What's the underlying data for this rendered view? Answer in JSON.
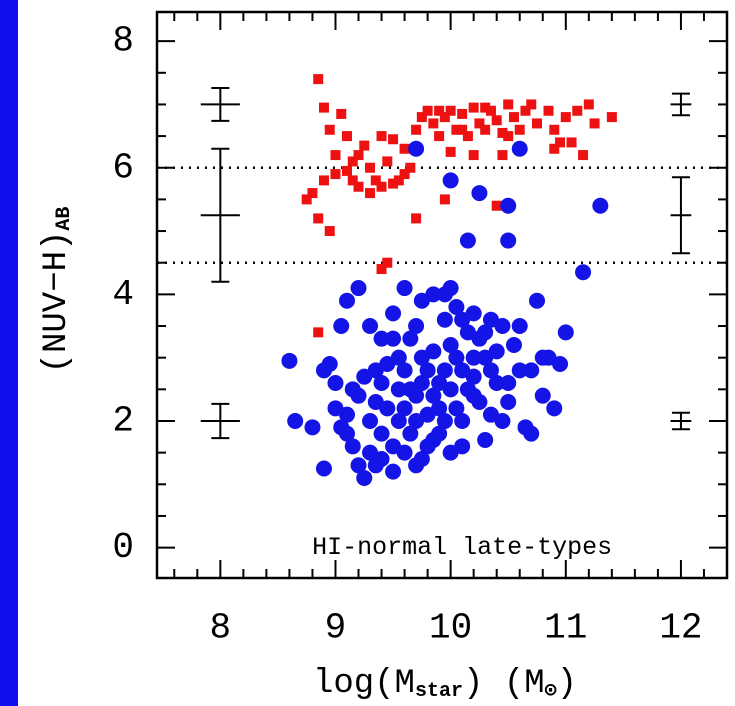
{
  "chart_data": {
    "type": "scatter",
    "background": "#1010ee",
    "ylabel": "(NUV−H)",
    "ylabel_sub": "AB",
    "xlabel_parts": [
      "log(M",
      "star",
      ") (M",
      "⊙",
      ")"
    ],
    "annotation": {
      "text": "HI-normal late-types",
      "x": 10.1,
      "y": 0
    },
    "xlim": [
      7.45,
      12.4
    ],
    "ylim": [
      -0.48,
      8.46
    ],
    "xticks": [
      8,
      9,
      10,
      11,
      12
    ],
    "yticks": [
      0,
      2,
      4,
      6,
      8
    ],
    "xminorticks": [
      7.6,
      7.8,
      8.2,
      8.4,
      8.6,
      8.8,
      9.2,
      9.4,
      9.6,
      9.8,
      10.2,
      10.4,
      10.6,
      10.8,
      11.2,
      11.4,
      11.6,
      11.8,
      12.2
    ],
    "yminorticks": [
      0.5,
      1,
      1.5,
      2.5,
      3,
      3.5,
      4.5,
      5,
      5.5,
      6.5,
      7,
      7.5
    ],
    "hlines": [
      6.0,
      4.5
    ],
    "error_bars": [
      {
        "x": 8,
        "y": 7,
        "xerr": 0.17,
        "yerr": 0.26
      },
      {
        "x": 8,
        "y": 5.25,
        "xerr": 0.17,
        "yerr": 1.05
      },
      {
        "x": 8,
        "y": 2,
        "xerr": 0.17,
        "yerr": 0.27
      },
      {
        "x": 12,
        "y": 7,
        "xerr": 0.09,
        "yerr": 0.17
      },
      {
        "x": 12,
        "y": 5.25,
        "xerr": 0.09,
        "yerr": 0.6
      },
      {
        "x": 12,
        "y": 2,
        "xerr": 0.09,
        "yerr": 0.13
      }
    ],
    "series": [
      {
        "color": "#ee1111",
        "marker": "square",
        "x": [
          8.85,
          8.9,
          8.95,
          9.05,
          9.1,
          8.8,
          8.75,
          8.85,
          8.95,
          8.9,
          9.0,
          9.1,
          9.15,
          9.2,
          9.25,
          9.3,
          9.35,
          9.4,
          9.45,
          9.5,
          9.55,
          9.6,
          9.2,
          9.3,
          9.4,
          9.5,
          9.6,
          9.7,
          9.8,
          9.85,
          9.9,
          9.95,
          10.0,
          10.05,
          10.1,
          10.15,
          10.2,
          10.25,
          10.3,
          10.35,
          10.4,
          10.45,
          10.5,
          10.55,
          10.6,
          10.65,
          10.7,
          10.75,
          9.75,
          9.9,
          10.1,
          10.3,
          10.5,
          10.6,
          10.85,
          10.9,
          10.95,
          11.0,
          11.1,
          11.2,
          11.25,
          11.4,
          11.15,
          11.05,
          10.9,
          10.2,
          10.4,
          9.95,
          9.7,
          9.45,
          9.4,
          8.85,
          9.2,
          9.65,
          9.0,
          10.45,
          10.0,
          9.15
        ],
        "y": [
          7.4,
          6.95,
          6.6,
          6.85,
          6.5,
          5.6,
          5.5,
          5.2,
          5.0,
          5.8,
          5.9,
          5.95,
          6.1,
          6.2,
          6.35,
          6.0,
          5.8,
          5.7,
          6.1,
          5.75,
          5.8,
          5.9,
          5.7,
          5.6,
          6.5,
          6.45,
          6.3,
          6.6,
          6.9,
          6.7,
          6.5,
          6.8,
          6.9,
          6.6,
          6.85,
          6.5,
          6.95,
          6.7,
          6.6,
          6.9,
          6.75,
          6.55,
          7.0,
          6.8,
          6.6,
          6.9,
          7.0,
          6.7,
          6.8,
          6.9,
          6.6,
          6.95,
          6.5,
          6.3,
          6.9,
          6.6,
          6.4,
          6.8,
          6.9,
          7.0,
          6.7,
          6.8,
          6.2,
          6.4,
          6.3,
          6.2,
          5.4,
          5.5,
          5.2,
          4.5,
          4.4,
          3.4,
          4.1,
          6.0,
          6.2,
          6.2,
          6.25,
          5.8
        ]
      },
      {
        "color": "#1414e6",
        "marker": "circle",
        "x": [
          9.7,
          10.6,
          10.0,
          10.25,
          10.5,
          11.3,
          10.15,
          10.5,
          11.15,
          8.6,
          8.65,
          8.8,
          8.9,
          9.0,
          8.95,
          9.05,
          9.1,
          9.15,
          9.2,
          9.25,
          9.3,
          9.35,
          9.4,
          9.45,
          9.5,
          9.55,
          9.6,
          9.65,
          9.7,
          9.75,
          9.8,
          9.85,
          9.9,
          9.95,
          10.0,
          10.05,
          10.1,
          10.15,
          10.2,
          10.25,
          10.3,
          10.35,
          10.4,
          10.45,
          10.5,
          10.55,
          10.6,
          10.65,
          10.7,
          10.75,
          10.8,
          10.85,
          10.9,
          10.95,
          11.0,
          10.7,
          9.1,
          9.2,
          9.3,
          9.4,
          9.5,
          9.6,
          9.7,
          9.75,
          9.85,
          9.95,
          10.0,
          10.05,
          10.1,
          10.2,
          10.3,
          10.4,
          9.0,
          9.1,
          9.2,
          9.3,
          9.4,
          9.5,
          9.55,
          9.6,
          9.65,
          9.7,
          9.75,
          9.8,
          9.85,
          9.9,
          9.95,
          10.0,
          10.05,
          10.1,
          10.15,
          10.2,
          9.35,
          9.45,
          9.55,
          9.65,
          9.75,
          9.85,
          9.95,
          10.25,
          10.35,
          10.45,
          9.25,
          9.15,
          9.05,
          9.35,
          9.5,
          9.7,
          9.8,
          9.9,
          10.0,
          10.1,
          10.3,
          10.5,
          10.6,
          10.8,
          9.4,
          9.6,
          10.2,
          10.35,
          8.9
        ],
        "y": [
          6.3,
          6.3,
          5.8,
          5.6,
          5.4,
          5.4,
          4.85,
          4.85,
          4.35,
          2.95,
          2.0,
          1.9,
          1.25,
          2.6,
          2.9,
          3.5,
          2.1,
          1.6,
          1.3,
          1.1,
          1.5,
          2.3,
          1.8,
          2.9,
          3.3,
          2.0,
          1.5,
          2.5,
          2.0,
          1.4,
          2.8,
          3.1,
          2.2,
          3.6,
          2.5,
          3.0,
          2.0,
          3.4,
          2.7,
          2.3,
          3.0,
          2.1,
          2.6,
          3.5,
          2.3,
          3.2,
          2.8,
          1.9,
          2.8,
          3.9,
          2.4,
          3.0,
          2.2,
          2.9,
          3.4,
          1.8,
          3.9,
          4.1,
          3.5,
          3.3,
          3.7,
          4.1,
          3.5,
          3.9,
          4.0,
          4.0,
          4.1,
          3.8,
          3.6,
          3.7,
          3.4,
          3.1,
          2.2,
          1.8,
          2.4,
          2.0,
          1.4,
          1.6,
          2.5,
          2.8,
          1.8,
          2.4,
          2.6,
          2.1,
          1.7,
          2.6,
          2.0,
          3.2,
          2.2,
          2.8,
          2.5,
          3.0,
          2.8,
          2.2,
          3.0,
          3.3,
          3.0,
          2.4,
          2.8,
          3.3,
          2.8,
          2.0,
          2.7,
          2.5,
          1.9,
          1.3,
          1.2,
          1.3,
          1.6,
          1.8,
          1.5,
          1.6,
          1.7,
          2.6,
          3.5,
          3.0,
          2.6,
          2.2,
          2.4,
          3.6,
          2.8
        ]
      }
    ]
  }
}
